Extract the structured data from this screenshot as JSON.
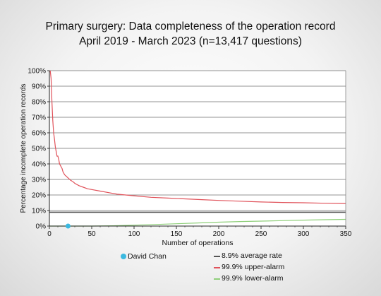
{
  "chart_data": {
    "type": "line",
    "title": "Primary surgery: Data completeness of the operation record",
    "subtitle": "April 2019 - March 2023 (n=13,417 questions)",
    "xlabel": "Number of operations",
    "ylabel": "Percentage incomplete operation records",
    "xlim": [
      0,
      350
    ],
    "ylim": [
      0,
      100
    ],
    "x_ticks": [
      "0",
      "50",
      "100",
      "150",
      "200",
      "250",
      "300",
      "350"
    ],
    "y_ticks": [
      "0%",
      "10%",
      "20%",
      "30%",
      "40%",
      "50%",
      "60%",
      "70%",
      "80%",
      "90%",
      "100%"
    ],
    "grid": true,
    "legend_position": "bottom",
    "series": [
      {
        "name": "8.9% average rate",
        "color": "#555555",
        "x": [
          0,
          350
        ],
        "y": [
          8.9,
          8.9
        ]
      },
      {
        "name": "99.9% upper-alarm",
        "color": "#e0525a",
        "x": [
          1,
          2,
          3,
          4,
          5,
          6,
          7,
          8,
          9,
          10,
          11,
          12,
          13,
          14,
          15,
          16,
          18,
          20,
          22,
          25,
          28,
          30,
          35,
          40,
          45,
          50,
          60,
          70,
          80,
          90,
          100,
          120,
          140,
          160,
          180,
          200,
          225,
          250,
          275,
          300,
          325,
          350
        ],
        "y": [
          100,
          95,
          80,
          68,
          60,
          56,
          51,
          48,
          45,
          45,
          43,
          40,
          39,
          38,
          37,
          35,
          33,
          32,
          31,
          29.5,
          28.5,
          27.5,
          26,
          25,
          24,
          23.5,
          22.5,
          21.5,
          20.5,
          20,
          19.5,
          18.5,
          18,
          17.5,
          17,
          16.5,
          16,
          15.5,
          15.2,
          15,
          14.7,
          14.5
        ]
      },
      {
        "name": "99.9% lower-alarm",
        "color": "#8fcf7a",
        "x": [
          0,
          25,
          50,
          75,
          100,
          125,
          150,
          175,
          200,
          225,
          250,
          275,
          300,
          325,
          350
        ],
        "y": [
          0,
          0,
          0,
          0.2,
          0.6,
          1.0,
          1.5,
          2.0,
          2.5,
          2.9,
          3.2,
          3.5,
          3.8,
          4.1,
          4.3
        ]
      }
    ],
    "points": [
      {
        "name": "David Chan",
        "x": 22,
        "y": 0,
        "color": "#3bb9e0"
      }
    ]
  }
}
